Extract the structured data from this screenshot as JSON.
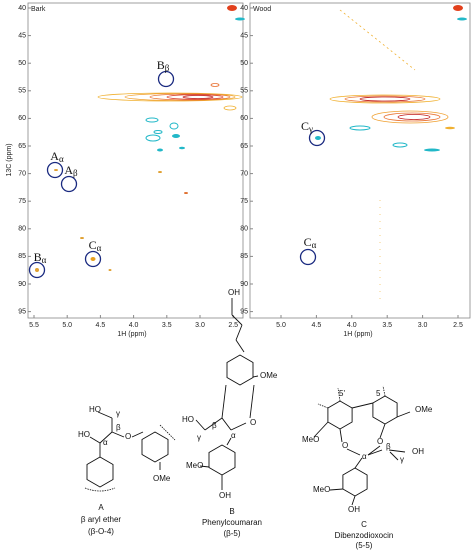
{
  "panels": [
    {
      "name": "Bark",
      "x_ticks": [
        "5.5",
        "5.0",
        "4.5",
        "4.0",
        "3.5",
        "3.0",
        "2.5"
      ],
      "x_label": "1H (ppm)",
      "annotations": [
        {
          "letter": "B",
          "sub": "β"
        },
        {
          "letter": "A",
          "sub": "α"
        },
        {
          "letter": "A",
          "sub": "β"
        },
        {
          "letter": "C",
          "sub": "α"
        },
        {
          "letter": "B",
          "sub": "α"
        }
      ]
    },
    {
      "name": "Wood",
      "x_ticks": [
        "5.0",
        "4.5",
        "4.0",
        "3.5",
        "3.0",
        "2.5"
      ],
      "x_label": "1H (ppm)",
      "annotations": [
        {
          "letter": "C",
          "sub": "γ"
        },
        {
          "letter": "C",
          "sub": "α"
        }
      ]
    }
  ],
  "y_label": "13C (ppm)",
  "y_ticks": [
    "40",
    "45",
    "50",
    "55",
    "60",
    "65",
    "70",
    "75",
    "80",
    "85",
    "90",
    "95"
  ],
  "structures": [
    {
      "letter": "A",
      "name": "β aryl ether",
      "linkage": "(β-O-4)",
      "atoms": [
        "HO",
        "γ",
        "β",
        "HO",
        "α",
        "O",
        "OMe"
      ]
    },
    {
      "letter": "B",
      "name": "Phenylcoumaran",
      "linkage": "(β-5)",
      "atoms": [
        "OH",
        "OMe",
        "HO",
        "γ",
        "β",
        "O",
        "α",
        "MeO",
        "OH"
      ]
    },
    {
      "letter": "C",
      "name": "Dibenzodioxocin",
      "linkage": "(5-5)",
      "atoms": [
        "5'",
        "5",
        "OMe",
        "MeO",
        "O",
        "O",
        "α",
        "β",
        "OH",
        "γ",
        "MeO",
        "OH"
      ]
    }
  ]
}
